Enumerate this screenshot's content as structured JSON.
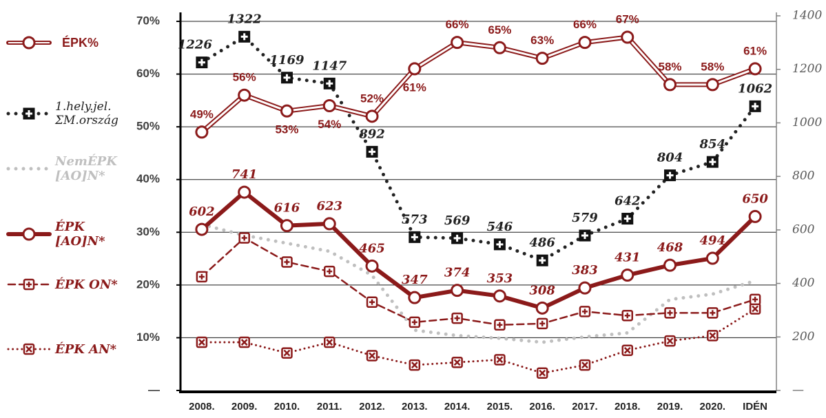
{
  "chart_data": {
    "type": "line",
    "categories": [
      "2008.",
      "2009.",
      "2010.",
      "2011.",
      "2012.",
      "2013.",
      "2014.",
      "2015.",
      "2016.",
      "2017.",
      "2018.",
      "2019.",
      "2020.",
      "IDÉN"
    ],
    "ylim": [
      0,
      70
    ],
    "yticks": [
      {
        "value": 0,
        "label": "—"
      },
      {
        "value": 10,
        "label": "10%"
      },
      {
        "value": 20,
        "label": "20%"
      },
      {
        "value": 30,
        "label": "30%"
      },
      {
        "value": 40,
        "label": "40%"
      },
      {
        "value": 50,
        "label": "50%"
      },
      {
        "value": 60,
        "label": "60%"
      },
      {
        "value": 70,
        "label": "70%"
      }
    ],
    "y2lim": [
      0,
      1400
    ],
    "y2ticks": [
      {
        "value": 0,
        "label": "—"
      },
      200,
      400,
      600,
      800,
      1000,
      1200,
      1400
    ],
    "grid": true,
    "legend": "left",
    "series": [
      {
        "name": "NemÉPK [AO]N*",
        "color": "#bfbfbf",
        "axis": "y2",
        "line_style": "dotted",
        "marker": "none",
        "line_width": 5,
        "values": [
          620,
          580,
          550,
          520,
          430,
          225,
          205,
          195,
          180,
          200,
          215,
          340,
          360,
          410
        ]
      },
      {
        "name": "ÉPK AN*",
        "color": "#8b1a1a",
        "axis": "y2",
        "line_style": "dotted",
        "marker": "square-cross",
        "line_width": 3,
        "values": [
          180,
          180,
          140,
          180,
          130,
          95,
          105,
          115,
          65,
          95,
          150,
          185,
          205,
          305
        ]
      },
      {
        "name": "ÉPK ON*",
        "color": "#8b1a1a",
        "axis": "y2",
        "line_style": "dashed",
        "marker": "square-plus",
        "line_width": 2.5,
        "values": [
          425,
          570,
          480,
          445,
          330,
          255,
          270,
          245,
          250,
          295,
          280,
          290,
          290,
          340
        ]
      },
      {
        "name": "1.hely.jel. ΣM.ország",
        "color": "#222222",
        "axis": "y2",
        "line_style": "dotted",
        "marker": "square-plus-filled",
        "line_width": 5,
        "data_labels": true,
        "values": [
          1226,
          1322,
          1169,
          1147,
          892,
          573,
          569,
          546,
          486,
          579,
          642,
          804,
          854,
          1062
        ]
      },
      {
        "name": "ÉPK [AO]N*",
        "color": "#8b1a1a",
        "axis": "y2",
        "line_style": "solid",
        "marker": "circle",
        "line_width": 6,
        "data_labels": true,
        "values": [
          602,
          741,
          616,
          623,
          465,
          347,
          374,
          353,
          308,
          383,
          431,
          468,
          494,
          650
        ]
      },
      {
        "name": "ÉPK%",
        "color": "#8b1a1a",
        "line_style": "double",
        "marker": "circle",
        "line_width": 7,
        "data_labels": true,
        "values": [
          49,
          56,
          53,
          54,
          52,
          61,
          66,
          65,
          63,
          66,
          67,
          58,
          58,
          61
        ],
        "value_labels": [
          "49%",
          "56%",
          "53%",
          "54%",
          "52%",
          "61%",
          "66%",
          "65%",
          "63%",
          "66%",
          "67%",
          "58%",
          "58%",
          "61%"
        ]
      }
    ]
  }
}
